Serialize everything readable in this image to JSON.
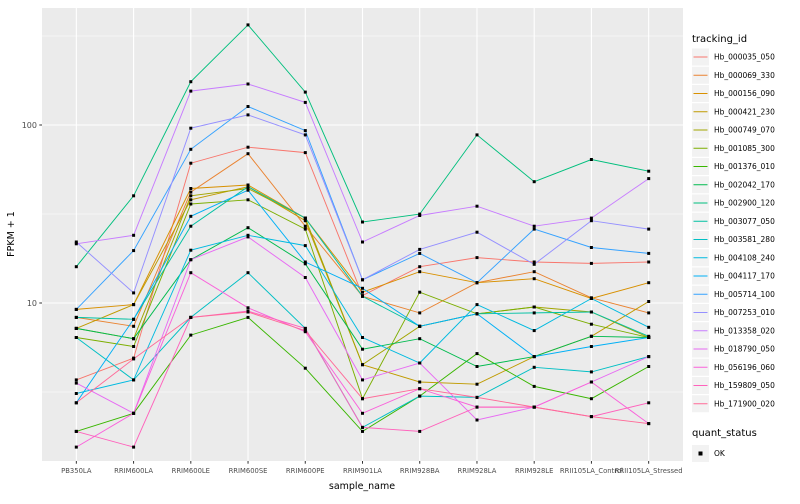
{
  "chart_data": {
    "type": "line",
    "title": "",
    "xlabel": "sample_name",
    "ylabel": "FPKM + 1",
    "y_scale": "log10",
    "ylim": [
      1.3,
      440
    ],
    "y_ticks": [
      10,
      100
    ],
    "grid": "on",
    "legend_position": "right",
    "panel_bg": "#EBEBEB",
    "grid_color": "#FFFFFF",
    "point_color": "#000000",
    "tick_text_color": "#4D4D4D",
    "legend_key_bg": "#F2F2F2",
    "categories": [
      "PB350LA",
      "RRIM600LA",
      "RRIM600LE",
      "RRIM600SE",
      "RRIM600PE",
      "RRIM901LA",
      "RRIM928BA",
      "RRIM928LA",
      "RRIM928LE",
      "RRII105LA_Control",
      "RRII105LA_Stressed"
    ],
    "legend": {
      "tracking_title": "tracking_id",
      "quant_title": "quant_status",
      "quant_ok_label": "OK"
    },
    "series": [
      {
        "name": "Hb_000035_050",
        "color": "#F8766D",
        "values": [
          3.7,
          4.9,
          61,
          75,
          70,
          11.0,
          16,
          18,
          17,
          16.7,
          17
        ]
      },
      {
        "name": "Hb_000069_330",
        "color": "#EA8331",
        "values": [
          8.3,
          7.4,
          42,
          69,
          27,
          10.9,
          8.8,
          13,
          15,
          10.7,
          8.8
        ]
      },
      {
        "name": "Hb_000156_090",
        "color": "#D89000",
        "values": [
          9.2,
          9.8,
          44,
          46,
          30,
          11.5,
          15,
          13,
          13.7,
          10.6,
          13
        ]
      },
      {
        "name": "Hb_000421_230",
        "color": "#C09B00",
        "values": [
          7.2,
          9.8,
          38,
          45,
          29,
          4.5,
          3.6,
          3.5,
          5.0,
          6.5,
          10.2
        ]
      },
      {
        "name": "Hb_000749_070",
        "color": "#A3A500",
        "values": [
          7.2,
          6.3,
          40,
          44,
          30,
          4.5,
          7.4,
          8.7,
          9.5,
          8.9,
          6.4
        ]
      },
      {
        "name": "Hb_001085_300",
        "color": "#7CAE00",
        "values": [
          6.4,
          5.7,
          36,
          38,
          26,
          2.9,
          11.5,
          8.7,
          9.5,
          7.6,
          6.4
        ]
      },
      {
        "name": "Hb_001376_010",
        "color": "#39B600",
        "values": [
          1.9,
          2.4,
          6.6,
          8.3,
          4.3,
          1.9,
          3.0,
          5.2,
          3.4,
          2.9,
          4.4
        ]
      },
      {
        "name": "Hb_002042_170",
        "color": "#00BB4E",
        "values": [
          7.2,
          6.3,
          17.5,
          26.5,
          16.6,
          5.5,
          6.3,
          4.4,
          5.0,
          6.5,
          6.4
        ]
      },
      {
        "name": "Hb_002900_120",
        "color": "#00BF7D",
        "values": [
          16,
          40,
          175,
          365,
          153,
          28.5,
          31.6,
          88,
          48,
          64,
          55
        ]
      },
      {
        "name": "Hb_003077_050",
        "color": "#00C1A3",
        "values": [
          8.3,
          8.1,
          27,
          45,
          30,
          10.9,
          7.4,
          8.7,
          8.8,
          8.9,
          6.5
        ]
      },
      {
        "name": "Hb_003581_280",
        "color": "#00BFC4",
        "values": [
          6.4,
          3.7,
          8.3,
          14.8,
          7.2,
          2.0,
          3.0,
          2.95,
          4.35,
          4.1,
          5.0
        ]
      },
      {
        "name": "Hb_004108_240",
        "color": "#00BAE0",
        "values": [
          3.1,
          3.7,
          19.8,
          24,
          21,
          6.4,
          4.6,
          9.8,
          7.0,
          10.6,
          7.3
        ]
      },
      {
        "name": "Hb_004117_170",
        "color": "#00B0F6",
        "values": [
          2.75,
          8.1,
          30.7,
          43,
          17,
          12.1,
          7.4,
          8.7,
          5.0,
          5.7,
          6.4
        ]
      },
      {
        "name": "Hb_005714_100",
        "color": "#35A2FF",
        "values": [
          9.2,
          19.7,
          73,
          127,
          93,
          13.5,
          19,
          13,
          26,
          20.5,
          19
        ]
      },
      {
        "name": "Hb_007253_010",
        "color": "#9590FF",
        "values": [
          22,
          11.4,
          96,
          114,
          88,
          13.5,
          20,
          25,
          16.5,
          29,
          26
        ]
      },
      {
        "name": "Hb_013358_020",
        "color": "#C77CFF",
        "values": [
          21.5,
          24,
          155,
          170,
          134,
          22,
          31,
          35,
          27,
          30,
          50
        ]
      },
      {
        "name": "Hb_018790_050",
        "color": "#E76BF3",
        "values": [
          3.55,
          2.4,
          17.5,
          23.5,
          13.9,
          3.7,
          4.6,
          2.2,
          2.6,
          3.6,
          5.0
        ]
      },
      {
        "name": "Hb_056196_060",
        "color": "#FA62DB",
        "values": [
          1.55,
          2.4,
          14.8,
          9.4,
          6.9,
          2.4,
          3.3,
          2.6,
          2.6,
          3.6,
          2.1
        ]
      },
      {
        "name": "Hb_159809_050",
        "color": "#FF62BC",
        "values": [
          1.9,
          1.55,
          8.3,
          9.0,
          7.2,
          2.0,
          1.9,
          2.6,
          2.6,
          2.3,
          2.75
        ]
      },
      {
        "name": "Hb_171900_020",
        "color": "#FF6A98",
        "values": [
          2.75,
          4.85,
          8.3,
          8.9,
          7.0,
          2.9,
          3.3,
          2.95,
          2.6,
          2.3,
          2.1
        ]
      }
    ]
  }
}
